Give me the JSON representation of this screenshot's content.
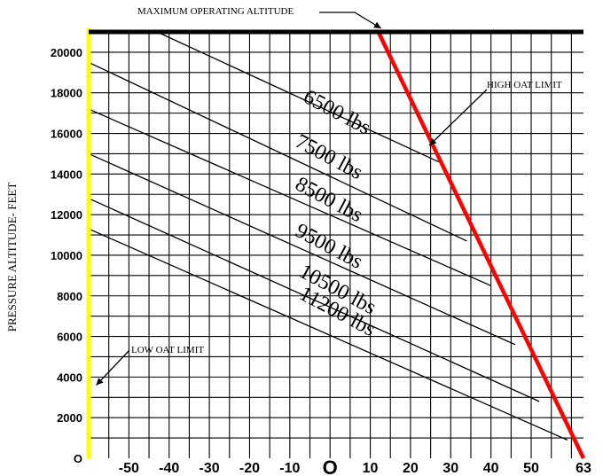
{
  "chart_data": {
    "type": "line",
    "title": "",
    "xlabel": "",
    "ylabel": "PRESSURE ALTITUDE- FEET",
    "xlim": [
      -60,
      63
    ],
    "ylim": [
      0,
      21000
    ],
    "x_tick_labels": [
      "-50",
      "-40",
      "-30",
      "-20",
      "-10",
      "O",
      "10",
      "20",
      "30",
      "40",
      "50",
      "63"
    ],
    "y_tick_labels": [
      "O",
      "2000",
      "4000",
      "6000",
      "8000",
      "10000",
      "12000",
      "14000",
      "16000",
      "18000",
      "20000"
    ],
    "grid": true,
    "series": [
      {
        "name": "6500 lbs",
        "points": [
          [
            -43,
            21000
          ],
          [
            27,
            14600
          ]
        ]
      },
      {
        "name": "7500 lbs",
        "points": [
          [
            -60,
            19500
          ],
          [
            34,
            10700
          ]
        ]
      },
      {
        "name": "8500 lbs",
        "points": [
          [
            -60,
            17200
          ],
          [
            40,
            8500
          ]
        ]
      },
      {
        "name": "9500 lbs",
        "points": [
          [
            -60,
            15000
          ],
          [
            46,
            5600
          ]
        ]
      },
      {
        "name": "10500 lbs",
        "points": [
          [
            -60,
            12800
          ],
          [
            52,
            2800
          ]
        ]
      },
      {
        "name": "11200 lbs",
        "points": [
          [
            -60,
            11300
          ],
          [
            59,
            900
          ]
        ]
      },
      {
        "name": "HIGH OAT LIMIT",
        "points": [
          [
            12,
            21000
          ],
          [
            63,
            0
          ]
        ]
      },
      {
        "name": "LOW OAT LIMIT",
        "points": [
          [
            -60,
            0
          ],
          [
            -60,
            21200
          ]
        ]
      },
      {
        "name": "MAXIMUM OPERATING ALTITUDE",
        "points": [
          [
            -60,
            21000
          ],
          [
            63,
            21000
          ]
        ]
      }
    ],
    "annotations": [
      {
        "text": "MAXIMUM OPERATING ALTITUDE",
        "target": [
          14,
          21000
        ]
      },
      {
        "text": "HIGH OAT LIMIT",
        "target": [
          24,
          15500
        ]
      },
      {
        "text": "LOW OAT LIMIT",
        "target": [
          -59,
          3600
        ]
      }
    ],
    "colors": {
      "high_oat_limit": "#ff0000",
      "low_oat_limit": "#ffff00",
      "max_altitude": "#000000",
      "grid": "#000000"
    }
  }
}
